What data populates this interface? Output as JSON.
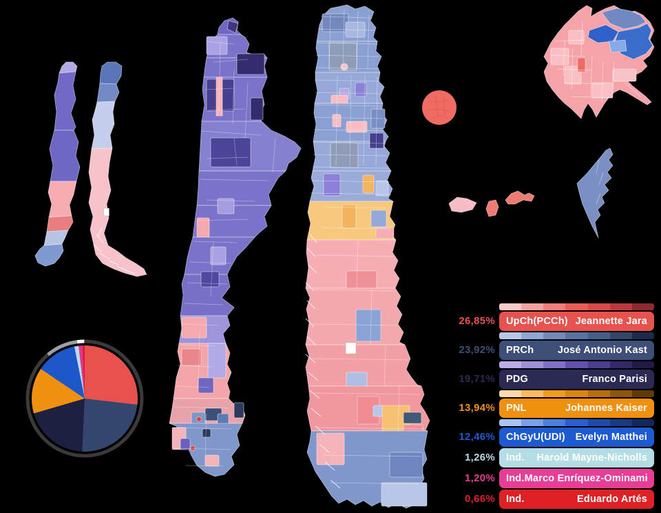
{
  "background": "#000000",
  "legend": {
    "entries": [
      {
        "percent": "26,85%",
        "party": "UpCh(PCCh)",
        "candidate": "Jeannette Jara",
        "color": "#e8524e",
        "text_color": "#ffffff",
        "shades": [
          "#f9caca",
          "#f5a3a1",
          "#f07d79",
          "#e95b56",
          "#d84a47",
          "#bb3a3d",
          "#8f2a30"
        ]
      },
      {
        "percent": "23,92%",
        "party": "PRCh",
        "candidate": "José Antonio Kast",
        "color": "#3d4f78",
        "text_color": "#ffffff",
        "shades": [
          "#b7c6e9",
          "#91a7d4",
          "#7289ba",
          "#5872a2",
          "#475e89",
          "#33466a",
          "#1c2b4c"
        ]
      },
      {
        "percent": "19,71%",
        "party": "PDG",
        "candidate": "Franco Parisi",
        "color": "#2a2a55",
        "text_color": "#ffffff",
        "shades": [
          "#b9aeea",
          "#9d90da",
          "#8071c8",
          "#6152ae",
          "#4a3e8f",
          "#342968",
          "#201b46"
        ]
      },
      {
        "percent": "13,94%",
        "party": "PNL",
        "candidate": "Johannes Kaiser",
        "color": "#f0900f",
        "text_color": "#ffffff",
        "shades": [
          "#fbd9a9",
          "#f8bc5e",
          "#f09c1b",
          "#d98510",
          "#b96e0d",
          "#8f5508",
          "#5f3a05"
        ]
      },
      {
        "percent": "12,46%",
        "party": "ChGyU(UDI)",
        "candidate": "Evelyn Matthei",
        "color": "#1e5ad0",
        "text_color": "#ffffff",
        "shades": [
          "#a9c4f1",
          "#7ba2e9",
          "#4c7ee0",
          "#2a5fd2",
          "#1f4cab",
          "#173a82",
          "#0f2858"
        ]
      },
      {
        "percent": "1,26%",
        "party": "Ind.",
        "candidate": "Harold Mayne-Nicholls",
        "color": "#b5dde6",
        "text_color": "#ffffff"
      },
      {
        "percent": "1,20%",
        "party": "Ind.",
        "candidate": "Marco Enríquez-Ominami",
        "color": "#e83d96",
        "text_color": "#ffffff"
      },
      {
        "percent": "0,66%",
        "party": "Ind.",
        "candidate": "Eduardo Artés",
        "color": "#df2126",
        "text_color": "#ffffff"
      }
    ]
  },
  "chart_data": {
    "type": "pie",
    "title": "",
    "labels": [
      "Jeannette Jara",
      "José Antonio Kast",
      "Franco Parisi",
      "Johannes Kaiser",
      "Evelyn Matthei",
      "Harold Mayne-Nicholls",
      "Marco Enríquez-Ominami",
      "Eduardo Artés"
    ],
    "values": [
      26.85,
      23.92,
      19.71,
      13.94,
      12.46,
      1.26,
      1.2,
      0.66
    ],
    "colors": [
      "#e8524e",
      "#34466e",
      "#1d2040",
      "#f09010",
      "#1c58c9",
      "#b8dde8",
      "#e0368f",
      "#dc1f26"
    ],
    "start_angle_deg": 0,
    "direction": "clockwise",
    "legend_position": "right",
    "ring": {
      "segments": [
        {
          "name": "ring-dark",
          "color": "#3a3a3a",
          "fraction": 89
        },
        {
          "name": "ring-light",
          "color": "#9aa0a6",
          "fraction": 9
        },
        {
          "name": "ring-gap",
          "color": "#ffffff",
          "fraction": 2
        }
      ]
    }
  }
}
